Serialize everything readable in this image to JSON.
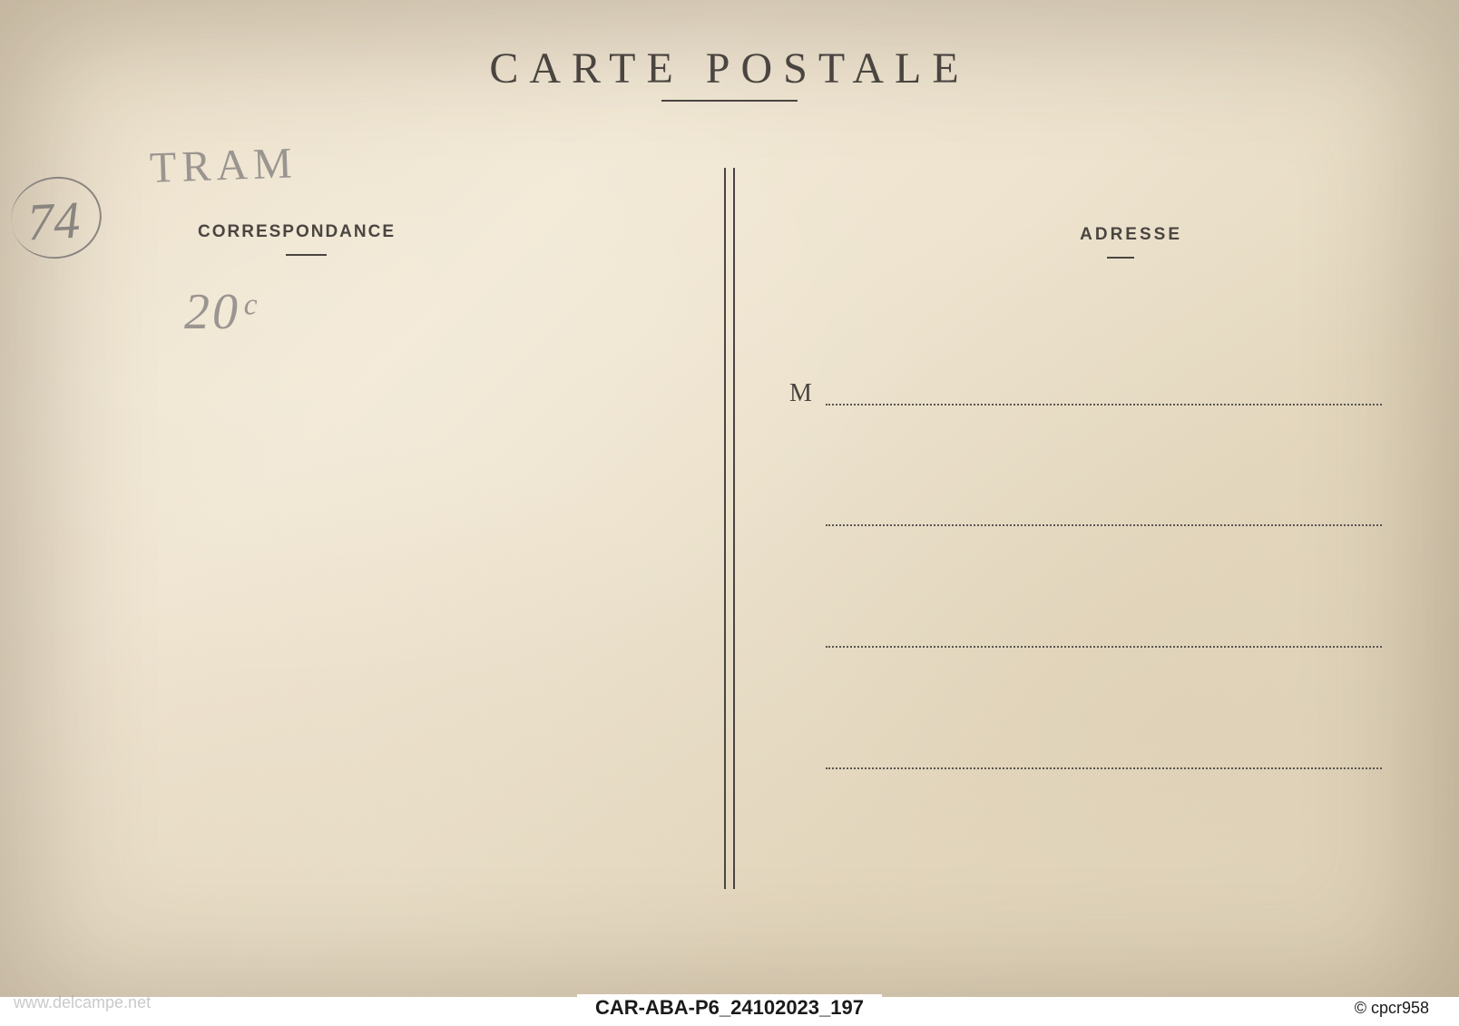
{
  "postcard": {
    "title": "CARTE  POSTALE",
    "correspondance_label": "CORRESPONDANCE",
    "adresse_label": "ADRESSE",
    "m_prefix": "M",
    "handwritten": {
      "number_74": "74",
      "tram_text": "TRAM",
      "price_20": "20ᶜ"
    },
    "styling": {
      "background_color": "#ede3ce",
      "text_color": "#4a4540",
      "handwritten_color": "#8a8580",
      "title_fontsize": 48,
      "title_letterspacing": 12,
      "label_fontsize": 19,
      "divider_gap": 10,
      "address_lines": 4,
      "address_line_spacing": 134
    }
  },
  "footer": {
    "watermark": "www.delcampe.net",
    "code": "CAR-ABA-P6_24102023_197",
    "credit": "© cpcr958"
  }
}
